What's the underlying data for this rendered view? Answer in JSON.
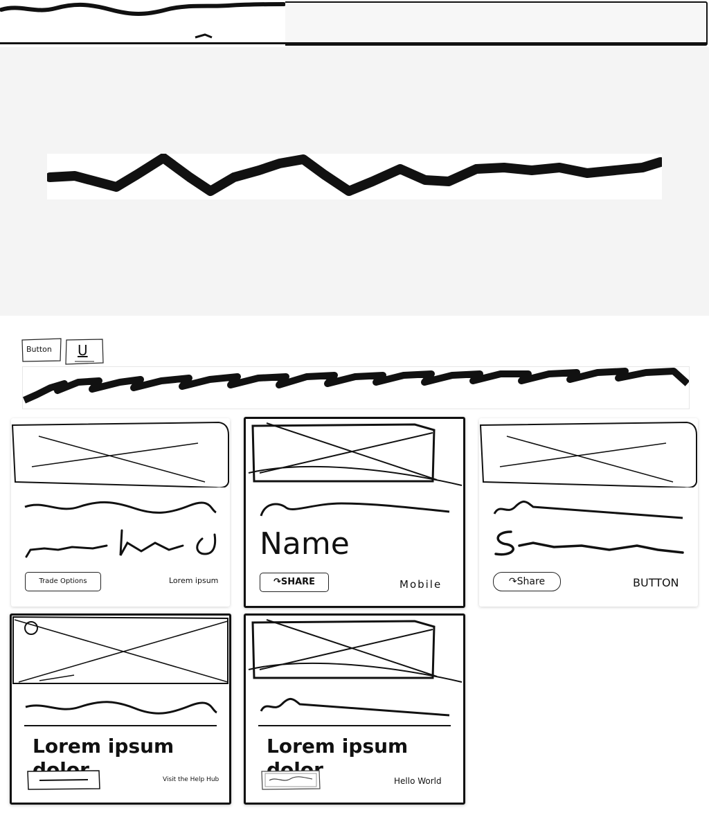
{
  "toolbar": {
    "button_label": "Button",
    "underline_label": "U"
  },
  "cards": [
    {
      "cta": "Trade Options",
      "caption": "Lorem ipsum"
    },
    {
      "title": "Name",
      "cta": "SHARE",
      "caption": "Mobile"
    },
    {
      "cta": "Share",
      "caption": "BUTTON"
    },
    {
      "title": "Lorem ipsum dolor",
      "caption": "Visit the Help Hub"
    },
    {
      "title": "Lorem ipsum dolor",
      "caption": "Hello World"
    }
  ],
  "icons": {
    "share": "share-icon",
    "image_placeholder": "image-placeholder-icon"
  }
}
